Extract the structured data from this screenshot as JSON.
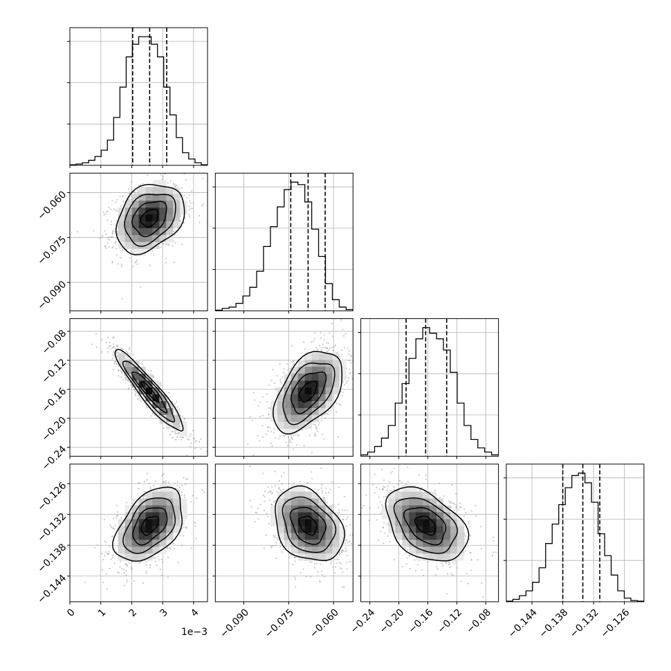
{
  "chart_data": {
    "type": "corner",
    "parameters": [
      {
        "ticks": [
          0,
          1,
          2,
          3,
          4
        ],
        "tick_labels": [
          "0",
          "1",
          "2",
          "3",
          "4"
        ],
        "range": [
          0,
          4.45
        ],
        "offset_text": "1e−3",
        "quantiles": [
          2.03,
          2.58,
          3.13
        ],
        "hist": [
          0.5,
          1,
          2,
          4,
          7,
          12,
          20,
          38,
          62,
          86,
          96,
          102,
          102,
          96,
          86,
          62,
          40,
          22,
          10,
          5,
          2,
          0.5
        ]
      },
      {
        "ticks": [
          -0.09,
          -0.075,
          -0.06
        ],
        "tick_labels": [
          "−0.090",
          "−0.075",
          "−0.060"
        ],
        "range": [
          -0.0995,
          -0.0535
        ],
        "quantiles": [
          -0.0743,
          -0.0685,
          -0.0628
        ],
        "hist": [
          0.5,
          2,
          3,
          6,
          12,
          19,
          32,
          52,
          68,
          84,
          98,
          104,
          102,
          88,
          66,
          44,
          22,
          9,
          3,
          1
        ]
      },
      {
        "ticks": [
          -0.24,
          -0.2,
          -0.16,
          -0.12,
          -0.08
        ],
        "tick_labels": [
          "−0.24",
          "−0.20",
          "−0.16",
          "−0.12",
          "−0.08"
        ],
        "range": [
          -0.2525,
          -0.0625
        ],
        "quantiles": [
          -0.19,
          -0.163,
          -0.134
        ],
        "hist": [
          1,
          3,
          7,
          13,
          22,
          38,
          52,
          70,
          84,
          92,
          88,
          84,
          76,
          60,
          38,
          22,
          12,
          6,
          3,
          1
        ]
      },
      {
        "ticks": [
          -0.144,
          -0.138,
          -0.132,
          -0.126
        ],
        "tick_labels": [
          "−0.144",
          "−0.138",
          "−0.132",
          "−0.126"
        ],
        "range": [
          -0.149,
          -0.1222
        ],
        "quantiles": [
          -0.138,
          -0.1341,
          -0.1308
        ],
        "hist": [
          0.5,
          2,
          5,
          9,
          16,
          28,
          48,
          64,
          80,
          94,
          104,
          106,
          98,
          82,
          56,
          38,
          22,
          9,
          3,
          1,
          0.5
        ]
      }
    ],
    "correlations": [
      [
        0,
        1,
        0.3
      ],
      [
        0,
        2,
        -0.93
      ],
      [
        1,
        2,
        0.5
      ],
      [
        0,
        3,
        0.45
      ],
      [
        1,
        3,
        -0.3
      ],
      [
        2,
        3,
        -0.4
      ]
    ],
    "contour_levels": [
      "0.5σ",
      "1σ",
      "1.5σ",
      "2σ"
    ],
    "grid": true,
    "colors": {
      "line": "#000000",
      "grid": "#b0b0b0",
      "points": "#9a9a9a"
    }
  }
}
